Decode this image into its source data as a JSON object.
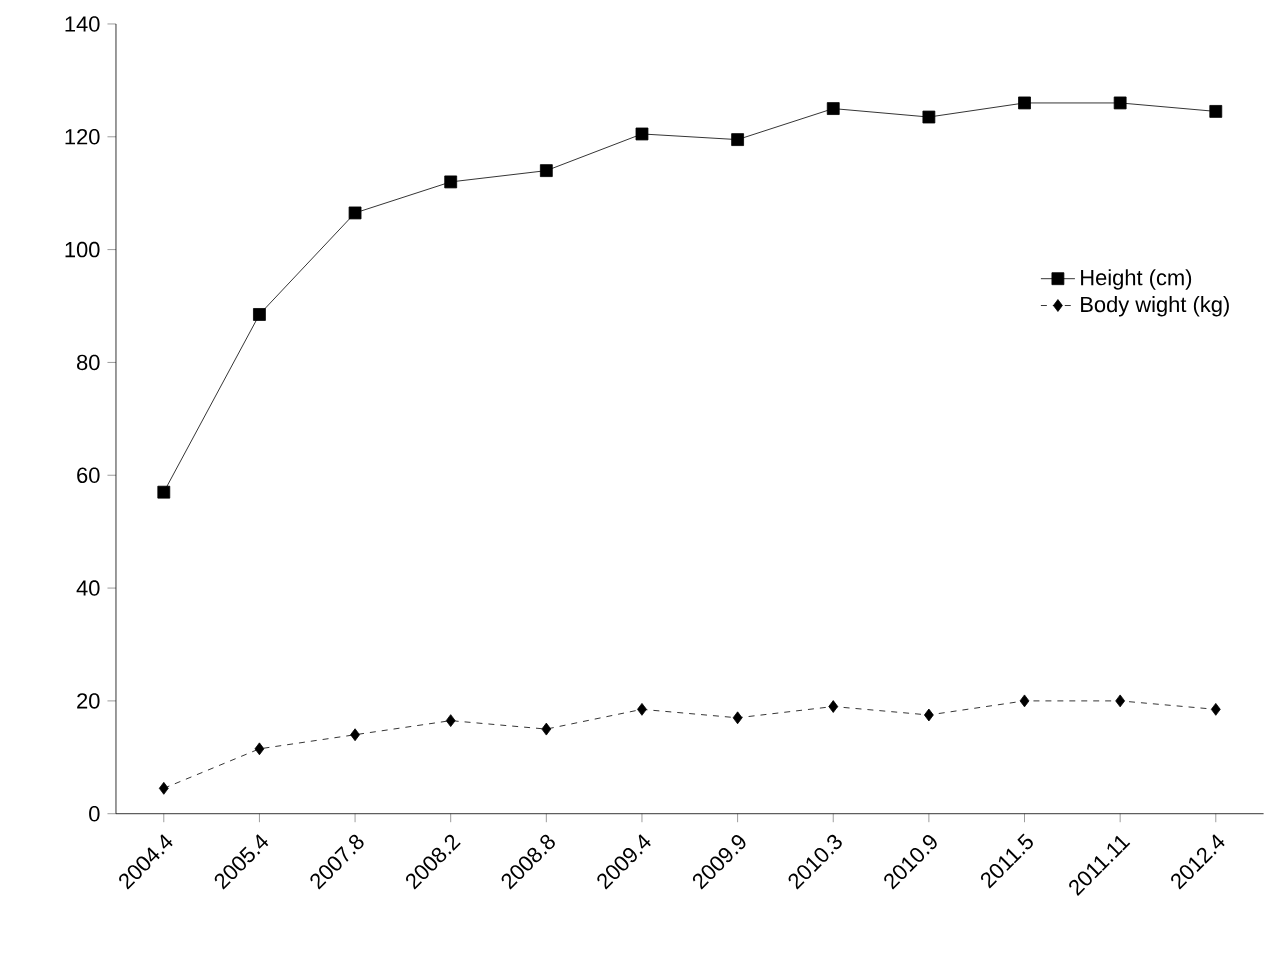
{
  "chart_data": {
    "type": "line",
    "categories": [
      "2004.4",
      "2005.4",
      "2007.8",
      "2008.2",
      "2008.8",
      "2009.4",
      "2009.9",
      "2010.3",
      "2010.9",
      "2011.5",
      "2011.11",
      "2012.4"
    ],
    "series": [
      {
        "name": "Height (cm)",
        "color": "#000000",
        "marker": "square",
        "line_style": "solid",
        "values": [
          57,
          88.5,
          106.5,
          112,
          114,
          120.5,
          119.5,
          125,
          123.5,
          126,
          126,
          124.5
        ]
      },
      {
        "name": "Body wight (kg)",
        "color": "#000000",
        "marker": "diamond",
        "line_style": "dashed",
        "values": [
          4.5,
          11.5,
          14,
          16.5,
          15,
          18.5,
          17,
          19,
          17.5,
          20,
          20,
          18.5
        ]
      }
    ],
    "ylim": [
      0,
      140
    ],
    "yticks": [
      0,
      20,
      40,
      60,
      80,
      100,
      120,
      140
    ],
    "grid": false,
    "legend": "right"
  }
}
